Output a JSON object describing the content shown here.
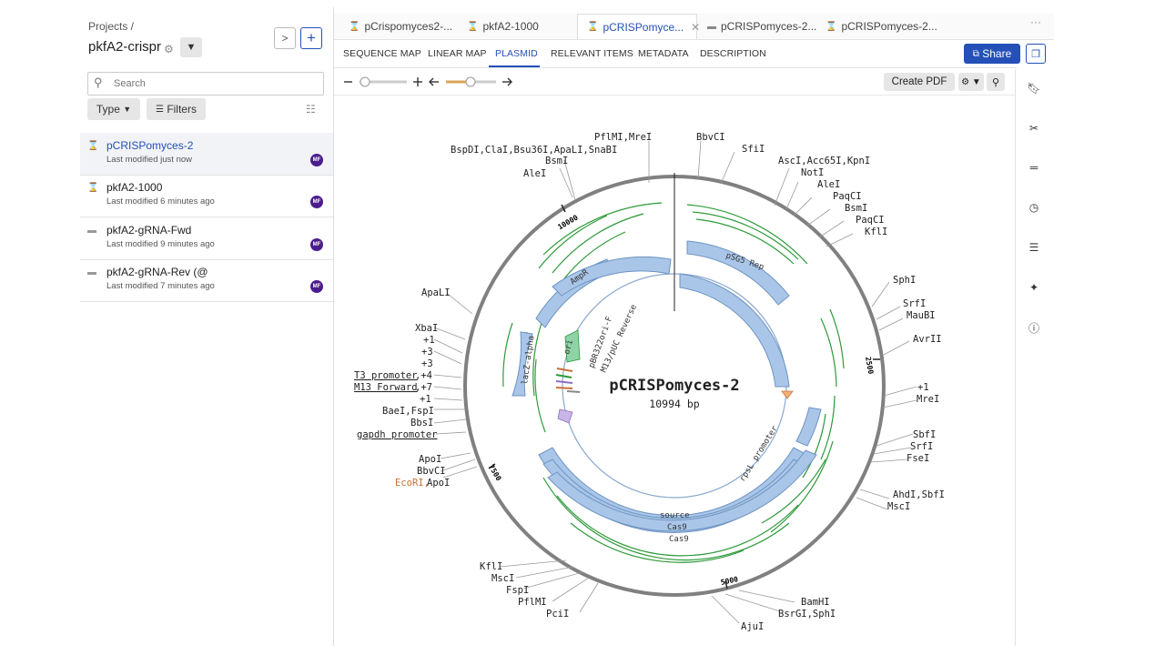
{
  "left_panel": {
    "breadcrumb": "Projects /",
    "project_title": "pkfA2-crispr",
    "search_placeholder": "Search",
    "type_label": "Type",
    "filters_label": "Filters",
    "items": [
      {
        "name": "pCRISPomyces-2",
        "modified": "Last modified just now",
        "avatar": "MF",
        "icon": "hourglass-icon"
      },
      {
        "name": "pkfA2-1000",
        "modified": "Last modified 6 minutes ago",
        "avatar": "MF",
        "icon": "hourglass-icon"
      },
      {
        "name": "pkfA2-gRNA-Fwd",
        "modified": "Last modified 9 minutes ago",
        "avatar": "MF",
        "icon": "oligo-icon"
      },
      {
        "name": "pkfA2-gRNA-Rev (@",
        "modified": "Last modified 7 minutes ago",
        "avatar": "MF",
        "icon": "oligo-icon"
      }
    ]
  },
  "tabs": [
    {
      "label": "pCrispomyces2-..."
    },
    {
      "label": "pkfA2-1000"
    },
    {
      "label": "pCRISPomyce..."
    },
    {
      "label": "pCRISPomyces-2..."
    },
    {
      "label": "pCRISPomyces-2..."
    }
  ],
  "subtabs": [
    "SEQUENCE MAP",
    "LINEAR MAP",
    "PLASMID",
    "RELEVANT ITEMS",
    "METADATA",
    "DESCRIPTION"
  ],
  "share_label": "Share",
  "create_pdf_label": "Create PDF",
  "plasmid": {
    "name": "pCRISPomyces-2",
    "length": "10994 bp",
    "ticks": [
      {
        "label": "2500",
        "bp": 2500
      },
      {
        "label": "5000",
        "bp": 5000
      },
      {
        "label": "7500",
        "bp": 7500
      },
      {
        "label": "10000",
        "bp": 10000
      }
    ],
    "features": [
      {
        "label": "pSG5 Rep"
      },
      {
        "label": "AmpR"
      },
      {
        "label": "ori"
      },
      {
        "label": "lacZ-alpha"
      },
      {
        "label": "pBR322ori-F"
      },
      {
        "label": "M13/pUC Reverse"
      },
      {
        "label": "rpsL promoter"
      },
      {
        "label": "source"
      },
      {
        "label": "Cas9"
      },
      {
        "label": "Cas9"
      }
    ],
    "sites": [
      {
        "label": "BspDI,ClaI,Bsu36I,ApaLI,SnaBI"
      },
      {
        "label": "BsmI"
      },
      {
        "label": "AleI"
      },
      {
        "label": "PflMI,MreI"
      },
      {
        "label": "BbvCI"
      },
      {
        "label": "SfiI"
      },
      {
        "label": "AscI,Acc65I,KpnI"
      },
      {
        "label": "NotI"
      },
      {
        "label": "AleI"
      },
      {
        "label": "PaqCI"
      },
      {
        "label": "BsmI"
      },
      {
        "label": "PaqCI"
      },
      {
        "label": "KflI"
      },
      {
        "label": "SphI"
      },
      {
        "label": "SrfI"
      },
      {
        "label": "MauBI"
      },
      {
        "label": "AvrII"
      },
      {
        "label": "+1"
      },
      {
        "label": "MreI"
      },
      {
        "label": "SbfI"
      },
      {
        "label": "SrfI"
      },
      {
        "label": "FseI"
      },
      {
        "label": "AhdI,SbfI"
      },
      {
        "label": "MscI"
      },
      {
        "label": "BamHI"
      },
      {
        "label": "BsrGI,SphI"
      },
      {
        "label": "AjuI"
      },
      {
        "label": "PciI"
      },
      {
        "label": "PflMI"
      },
      {
        "label": "FspI"
      },
      {
        "label": "MscI"
      },
      {
        "label": "KflI"
      },
      {
        "label": "ApoI"
      },
      {
        "label": "BbvCI"
      },
      {
        "label": "ApoI"
      },
      {
        "label": "EcoRI,"
      },
      {
        "label": "gapdh promoter"
      },
      {
        "label": "BbsI"
      },
      {
        "label": "BaeI,FspI"
      },
      {
        "label": "+1"
      },
      {
        "label": "M13 Forward"
      },
      {
        "label": ",+7"
      },
      {
        "label": "T3 promoter"
      },
      {
        "label": ",+4"
      },
      {
        "label": "+3"
      },
      {
        "label": "+3"
      },
      {
        "label": "+1"
      },
      {
        "label": "XbaI"
      },
      {
        "label": "ApaLI"
      }
    ]
  },
  "colors": {
    "accent": "#2450b8",
    "feature_fill": "#a9c6e8",
    "feature_stroke": "#6e93c2",
    "orf_green": "#2e9a3a",
    "avatar": "#4b1d8c",
    "ecori": "#c8703a"
  },
  "icons": {
    "right_sidebar": [
      "bookmark-icon",
      "scissors-icon",
      "equals-icon",
      "clock-icon",
      "align-icon",
      "puzzle-icon",
      "info-icon"
    ]
  }
}
